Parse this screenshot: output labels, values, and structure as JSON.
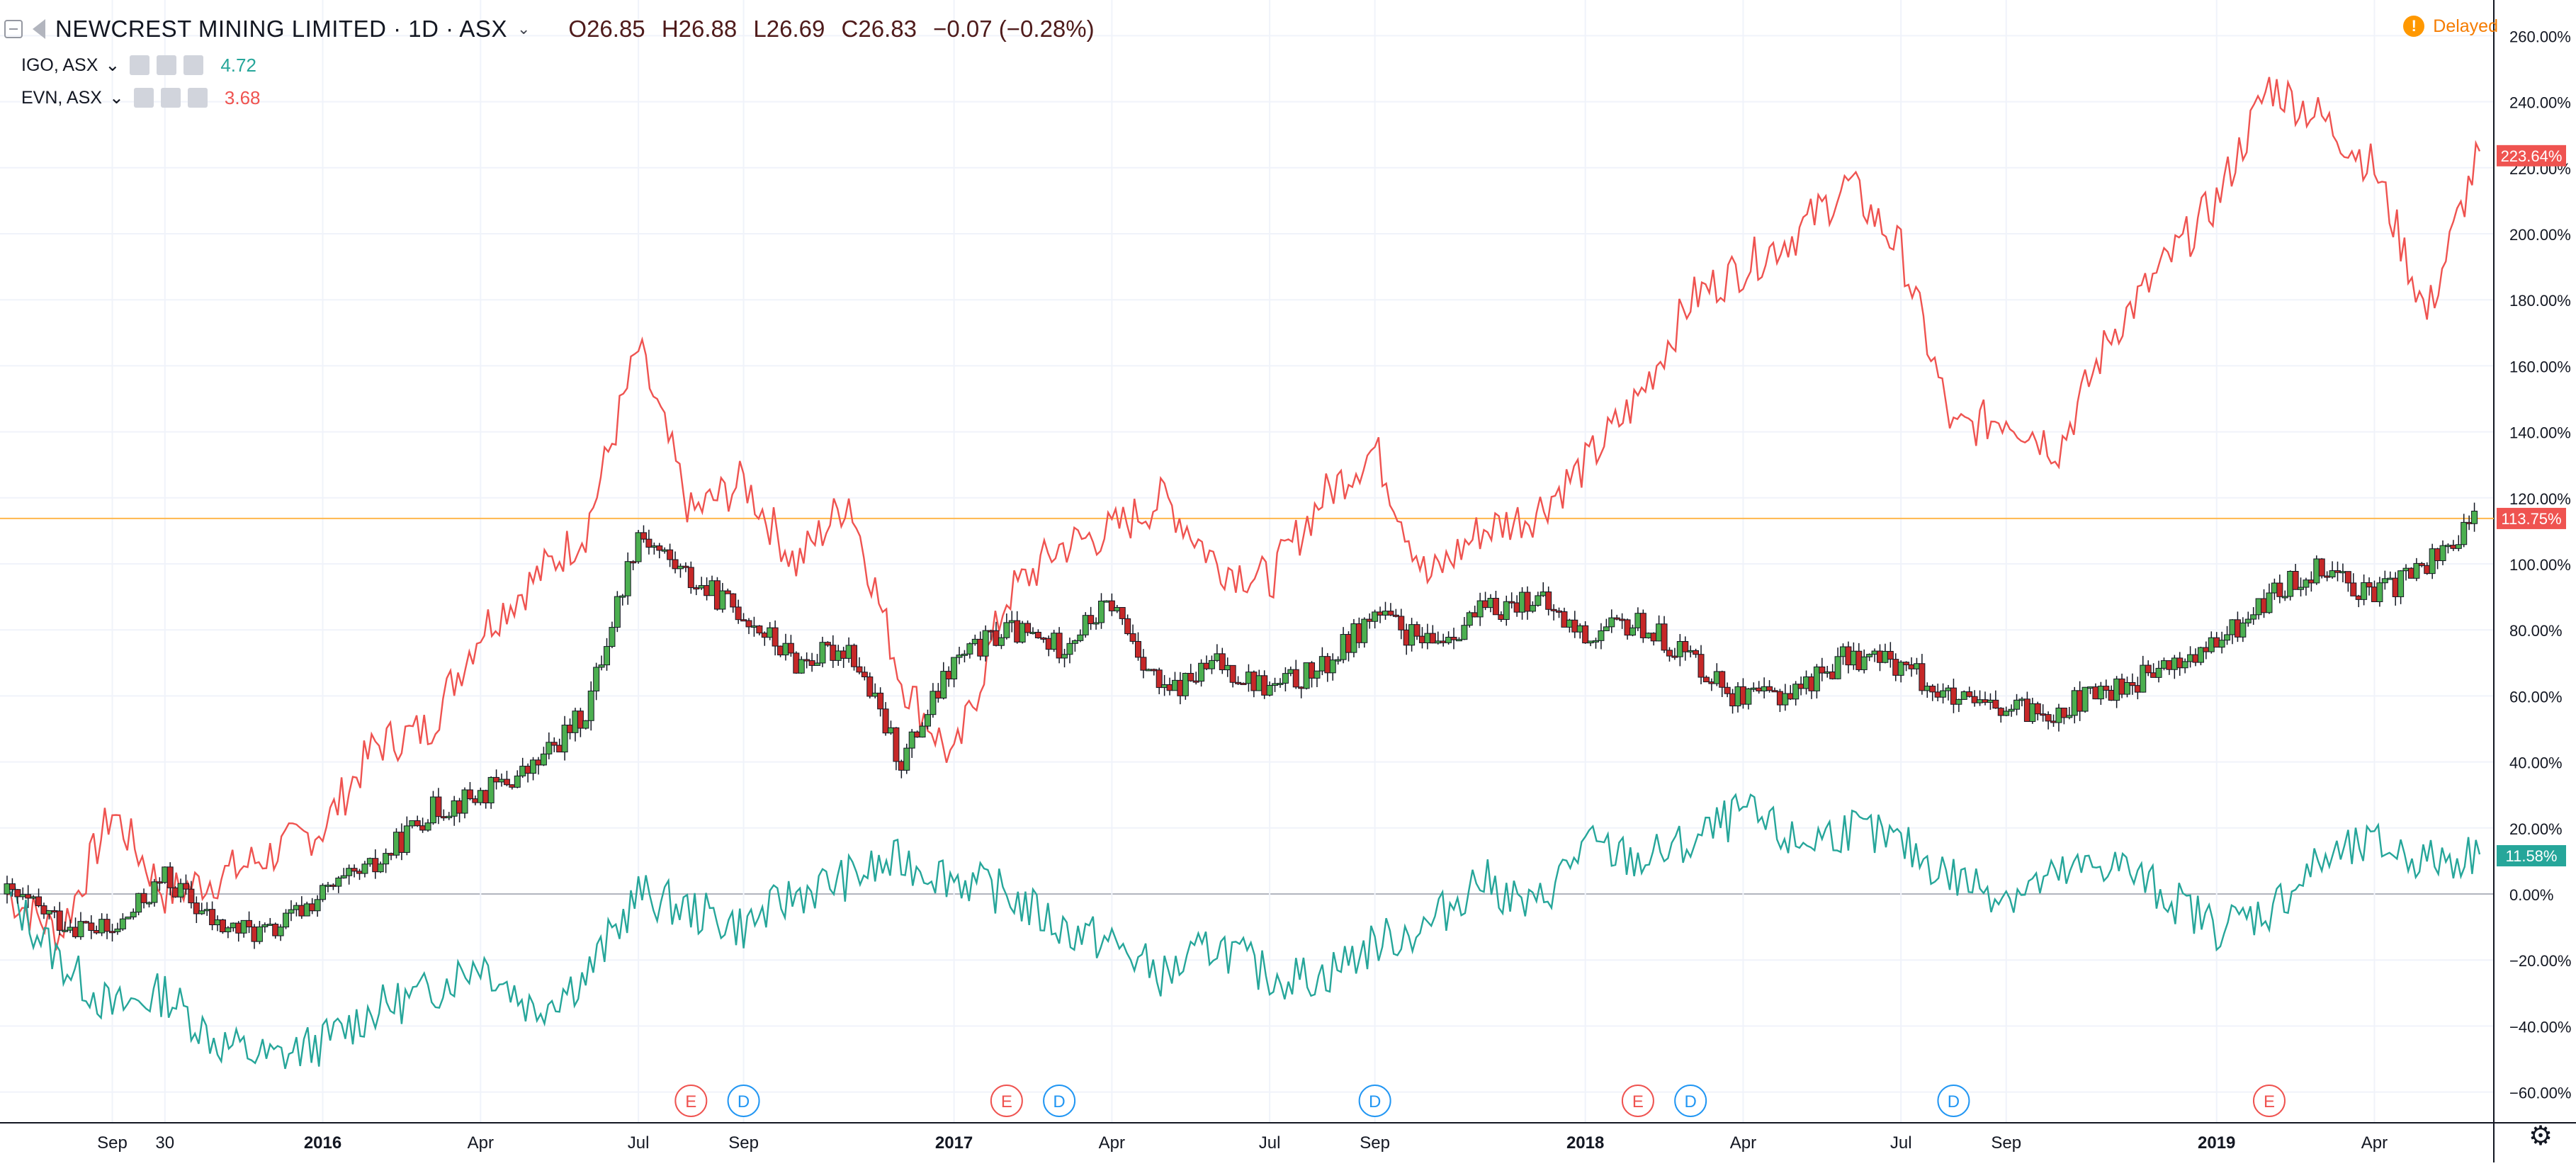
{
  "header": {
    "symbol": "NEWCREST MINING LIMITED · 1D · ASX",
    "open": "O26.85",
    "high": "H26.88",
    "low": "L26.69",
    "close": "C26.83",
    "change": "−0.07 (−0.28%)"
  },
  "compare": [
    {
      "name": "IGO, ASX",
      "value": "4.72",
      "color": "#26a69a"
    },
    {
      "name": "EVN, ASX",
      "value": "3.68",
      "color": "#ef5350"
    }
  ],
  "status": {
    "delayed_label": "Delayed",
    "icon": "!"
  },
  "chart_data": {
    "type": "line",
    "title": "NEWCREST MINING LIMITED · 1D · ASX",
    "x_ticks": [
      "Sep",
      "30",
      "2016",
      "Apr",
      "Jul",
      "Sep",
      "2017",
      "Apr",
      "Jul",
      "Sep",
      "2018",
      "Apr",
      "Jul",
      "Sep",
      "2019",
      "Apr"
    ],
    "y_ticks": [
      "260.00%",
      "240.00%",
      "220.00%",
      "200.00%",
      "180.00%",
      "160.00%",
      "140.00%",
      "120.00%",
      "100.00%",
      "80.00%",
      "60.00%",
      "40.00%",
      "20.00%",
      "0.00%",
      "−20.00%",
      "−40.00%",
      "−60.00%"
    ],
    "ylim": [
      -70,
      270
    ],
    "x": [
      "2015-07",
      "2015-08",
      "2015-09",
      "2015-10",
      "2015-11",
      "2015-12",
      "2016-01",
      "2016-02",
      "2016-03",
      "2016-04",
      "2016-05",
      "2016-06",
      "2016-07",
      "2016-08",
      "2016-09",
      "2016-10",
      "2016-11",
      "2016-12",
      "2017-01",
      "2017-02",
      "2017-03",
      "2017-04",
      "2017-05",
      "2017-06",
      "2017-07",
      "2017-08",
      "2017-09",
      "2017-10",
      "2017-11",
      "2017-12",
      "2018-01",
      "2018-02",
      "2018-03",
      "2018-04",
      "2018-05",
      "2018-06",
      "2018-07",
      "2018-08",
      "2018-09",
      "2018-10",
      "2018-11",
      "2018-12",
      "2019-01",
      "2019-02",
      "2019-03",
      "2019-04",
      "2019-05",
      "2019-06"
    ],
    "series": [
      {
        "name": "NEWCREST MINING LIMITED",
        "style": "candles",
        "up_color": "#4caf50",
        "down_color": "#c62828",
        "values": [
          0,
          -8,
          -12,
          5,
          -10,
          -12,
          0,
          8,
          25,
          30,
          38,
          55,
          110,
          95,
          85,
          70,
          75,
          40,
          70,
          80,
          75,
          88,
          60,
          70,
          62,
          68,
          85,
          75,
          85,
          90,
          78,
          82,
          72,
          58,
          62,
          72,
          70,
          58,
          55,
          56,
          62,
          68,
          75,
          90,
          100,
          90,
          100,
          114
        ]
      },
      {
        "name": "EVN, ASX",
        "label": "223.64%",
        "color": "#ef5350",
        "values": [
          0,
          -12,
          25,
          0,
          5,
          12,
          20,
          45,
          50,
          80,
          95,
          110,
          165,
          115,
          125,
          100,
          120,
          65,
          40,
          90,
          105,
          110,
          120,
          100,
          95,
          120,
          135,
          95,
          110,
          115,
          130,
          150,
          180,
          190,
          200,
          215,
          195,
          140,
          145,
          135,
          170,
          190,
          210,
          245,
          235,
          220,
          175,
          225
        ]
      },
      {
        "name": "IGO, ASX",
        "label": "11.58%",
        "color": "#26a69a",
        "values": [
          0,
          -20,
          -35,
          -30,
          -45,
          -50,
          -45,
          -35,
          -30,
          -20,
          -35,
          -25,
          0,
          -5,
          -10,
          0,
          5,
          10,
          5,
          0,
          -10,
          -15,
          -25,
          -15,
          -25,
          -25,
          -15,
          -10,
          5,
          -5,
          15,
          10,
          15,
          25,
          15,
          20,
          15,
          5,
          0,
          5,
          10,
          0,
          -10,
          -5,
          10,
          15,
          10,
          12
        ]
      }
    ],
    "markers": [
      {
        "type": "E",
        "date": "2016-08"
      },
      {
        "type": "D",
        "date": "2016-09"
      },
      {
        "type": "E",
        "date": "2017-02"
      },
      {
        "type": "D",
        "date": "2017-03"
      },
      {
        "type": "D",
        "date": "2017-09"
      },
      {
        "type": "E",
        "date": "2018-02"
      },
      {
        "type": "D",
        "date": "2018-03"
      },
      {
        "type": "D",
        "date": "2018-08"
      },
      {
        "type": "E",
        "date": "2019-02"
      }
    ],
    "last_price_label": "113.75%",
    "grid": true
  }
}
